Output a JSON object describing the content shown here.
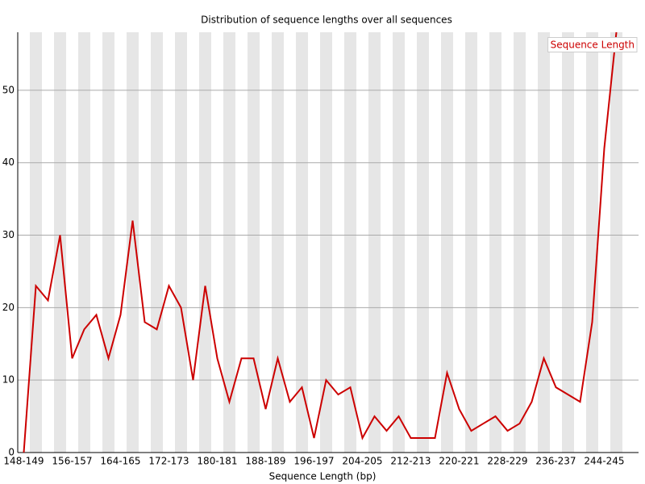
{
  "chart_data": {
    "type": "line",
    "title": "Distribution of sequence lengths over all sequences",
    "xlabel": "Sequence Length (bp)",
    "categories": [
      "148-149",
      null,
      null,
      null,
      "156-157",
      null,
      null,
      null,
      "164-165",
      null,
      null,
      null,
      "172-173",
      null,
      null,
      null,
      "180-181",
      null,
      null,
      null,
      "188-189",
      null,
      null,
      null,
      "196-197",
      null,
      null,
      null,
      "204-205",
      null,
      null,
      null,
      "212-213",
      null,
      null,
      null,
      "220-221",
      null,
      null,
      null,
      "228-229",
      null,
      null,
      null,
      "236-237",
      null,
      null,
      null,
      "244-245",
      null
    ],
    "series": [
      {
        "name": "Sequence Length",
        "color": "#cc0000",
        "values": [
          0,
          23,
          21,
          30,
          13,
          17,
          19,
          13,
          19,
          32,
          18,
          17,
          23,
          20,
          10,
          23,
          13,
          7,
          13,
          13,
          6,
          13,
          7,
          9,
          2,
          10,
          8,
          9,
          2,
          5,
          3,
          5,
          2,
          2,
          2,
          11,
          6,
          3,
          4,
          5,
          3,
          4,
          7,
          13,
          9,
          8,
          7,
          18,
          42,
          58
        ]
      }
    ],
    "ylim": [
      0,
      58
    ],
    "yticks": [
      0,
      10,
      20,
      30,
      40,
      50
    ],
    "grid": true,
    "legend": "top-right"
  }
}
